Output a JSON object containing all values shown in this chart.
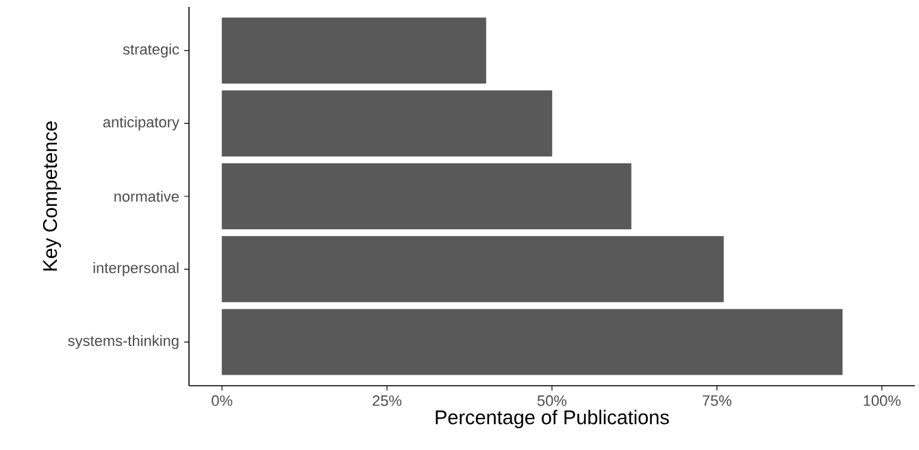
{
  "chart_data": {
    "type": "bar",
    "orientation": "horizontal",
    "xlabel": "Percentage of Publications",
    "ylabel": "Key Competence",
    "categories": [
      "strategic",
      "anticipatory",
      "normative",
      "interpersonal",
      "systems-thinking"
    ],
    "values": [
      40,
      50,
      62,
      76,
      94
    ],
    "color": "#595959",
    "xlim": [
      -5,
      105
    ],
    "xticks": [
      {
        "value": 0,
        "label": "0%"
      },
      {
        "value": 25,
        "label": "25%"
      },
      {
        "value": 50,
        "label": "50%"
      },
      {
        "value": 75,
        "label": "75%"
      },
      {
        "value": 100,
        "label": "100%"
      }
    ],
    "grid": false
  }
}
